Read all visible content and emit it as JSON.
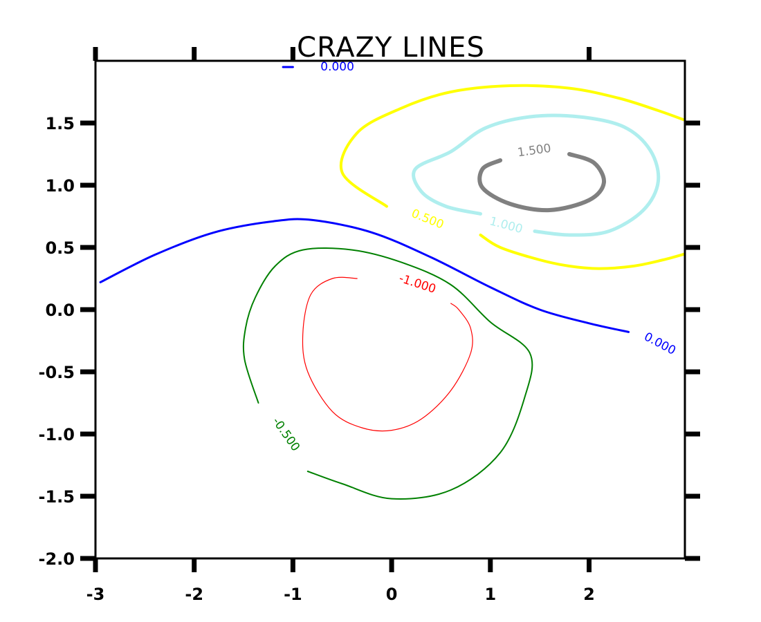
{
  "chart_data": {
    "type": "contour",
    "title": "CRAZY LINES",
    "xlabel": "",
    "ylabel": "",
    "xlim": [
      -3,
      3
    ],
    "ylim": [
      -2,
      2
    ],
    "x_ticks": [
      -3,
      -2,
      -1,
      0,
      1,
      2
    ],
    "x_tick_labels": [
      "-3",
      "-2",
      "-1",
      "0",
      "1",
      "2"
    ],
    "y_ticks": [
      -2.0,
      -1.5,
      -1.0,
      -0.5,
      0.0,
      0.5,
      1.0,
      1.5
    ],
    "y_tick_labels": [
      "-2.0",
      "-1.5",
      "-1.0",
      "-0.5",
      "0.0",
      "0.5",
      "1.0",
      "1.5"
    ],
    "grid": false,
    "style": "xkcd",
    "levels": [
      {
        "level": -1.0,
        "label": "-1.000",
        "color": "#ff0000",
        "paths": [
          [
            [
              -0.35,
              0.25
            ],
            [
              -0.6,
              0.25
            ],
            [
              -0.82,
              0.12
            ],
            [
              -0.9,
              -0.2
            ],
            [
              -0.85,
              -0.5
            ],
            [
              -0.6,
              -0.82
            ],
            [
              -0.3,
              -0.95
            ],
            [
              0.0,
              -0.97
            ],
            [
              0.3,
              -0.88
            ],
            [
              0.6,
              -0.65
            ],
            [
              0.8,
              -0.35
            ],
            [
              0.8,
              -0.15
            ],
            [
              0.68,
              0.0
            ],
            [
              0.6,
              0.05
            ]
          ]
        ],
        "label_pos": [
          0.25,
          0.18
        ]
      },
      {
        "level": -0.5,
        "label": "-0.500",
        "color": "#008000",
        "paths": [
          [
            [
              -1.35,
              -0.75
            ],
            [
              -1.49,
              -0.4
            ],
            [
              -1.48,
              -0.15
            ],
            [
              -1.38,
              0.1
            ],
            [
              -1.18,
              0.35
            ],
            [
              -0.9,
              0.48
            ],
            [
              -0.4,
              0.48
            ],
            [
              0.1,
              0.38
            ],
            [
              0.6,
              0.2
            ],
            [
              1.0,
              -0.1
            ],
            [
              1.4,
              -0.35
            ],
            [
              1.35,
              -0.7
            ],
            [
              1.1,
              -1.15
            ],
            [
              0.6,
              -1.45
            ],
            [
              0.0,
              -1.52
            ],
            [
              -0.5,
              -1.4
            ],
            [
              -0.85,
              -1.3
            ]
          ]
        ],
        "label_pos": [
          -1.1,
          -1.02
        ]
      },
      {
        "level": 0.0,
        "label": "0.000",
        "color": "#0000ff",
        "paths": [
          [
            [
              -2.95,
              0.22
            ],
            [
              -2.4,
              0.44
            ],
            [
              -1.8,
              0.62
            ],
            [
              -1.2,
              0.71
            ],
            [
              -0.8,
              0.72
            ],
            [
              -0.2,
              0.62
            ],
            [
              0.4,
              0.42
            ],
            [
              1.0,
              0.18
            ],
            [
              1.5,
              0.0
            ],
            [
              2.0,
              -0.11
            ],
            [
              2.4,
              -0.18
            ]
          ],
          [
            [
              -1.1,
              1.95
            ],
            [
              -1.0,
              1.95
            ]
          ]
        ],
        "label_pos": [
          2.7,
          -0.3
        ]
      },
      {
        "level": 0.5,
        "label": "0.500",
        "color": "#ffff00",
        "paths": [
          [
            [
              -0.05,
              0.83
            ],
            [
              -0.5,
              1.1
            ],
            [
              -0.35,
              1.42
            ],
            [
              0.1,
              1.62
            ],
            [
              0.6,
              1.75
            ],
            [
              1.2,
              1.8
            ],
            [
              1.8,
              1.78
            ],
            [
              2.3,
              1.7
            ],
            [
              2.7,
              1.6
            ],
            [
              2.98,
              1.52
            ]
          ],
          [
            [
              0.9,
              0.6
            ],
            [
              1.1,
              0.5
            ],
            [
              1.5,
              0.4
            ],
            [
              1.8,
              0.35
            ],
            [
              2.1,
              0.33
            ],
            [
              2.45,
              0.35
            ],
            [
              2.75,
              0.4
            ],
            [
              2.98,
              0.45
            ]
          ]
        ],
        "label_pos": [
          0.35,
          0.7
        ]
      },
      {
        "level": 1.0,
        "label": "1.000",
        "color": "#afeeee",
        "paths": [
          [
            [
              1.45,
              0.63
            ],
            [
              1.8,
              0.6
            ],
            [
              2.2,
              0.63
            ],
            [
              2.55,
              0.8
            ],
            [
              2.7,
              1.03
            ],
            [
              2.62,
              1.28
            ],
            [
              2.35,
              1.47
            ],
            [
              1.9,
              1.55
            ],
            [
              1.4,
              1.55
            ],
            [
              0.95,
              1.46
            ],
            [
              0.6,
              1.27
            ],
            [
              0.24,
              1.13
            ],
            [
              0.3,
              0.95
            ],
            [
              0.55,
              0.83
            ],
            [
              0.9,
              0.77
            ]
          ]
        ],
        "label_pos": [
          1.15,
          0.65
        ]
      },
      {
        "level": 1.5,
        "label": "1.500",
        "color": "#808080",
        "paths": [
          [
            [
              1.8,
              1.25
            ],
            [
              2.05,
              1.18
            ],
            [
              2.15,
              1.02
            ],
            [
              2.0,
              0.88
            ],
            [
              1.6,
              0.8
            ],
            [
              1.2,
              0.85
            ],
            [
              0.92,
              0.98
            ],
            [
              0.92,
              1.13
            ],
            [
              1.1,
              1.2
            ]
          ]
        ],
        "label_pos": [
          1.45,
          1.25
        ]
      }
    ]
  }
}
